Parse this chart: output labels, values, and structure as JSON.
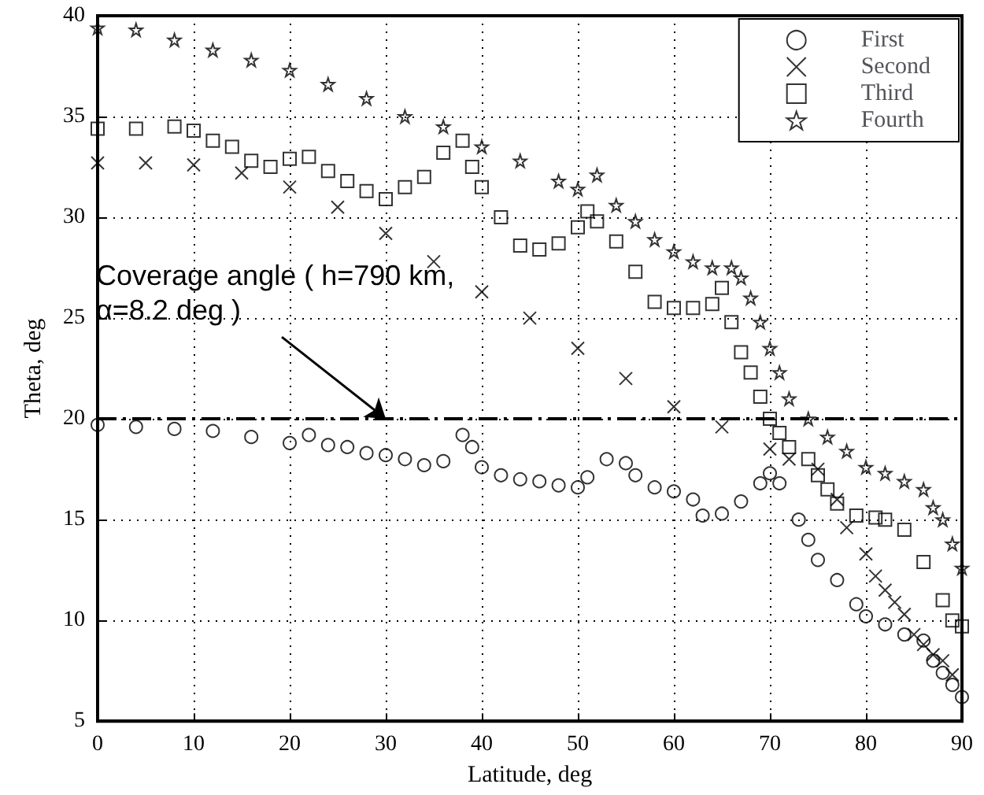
{
  "chart_data": {
    "type": "scatter",
    "xlabel": "Latitude, deg",
    "ylabel": "Theta, deg",
    "xlim": [
      0,
      90
    ],
    "xticks": [
      0,
      10,
      20,
      30,
      40,
      50,
      60,
      70,
      80,
      90
    ],
    "ylim": [
      5,
      40
    ],
    "yticks": [
      5,
      10,
      15,
      20,
      25,
      30,
      35,
      40
    ],
    "grid": true,
    "legend": "top right",
    "series": [
      {
        "name": "First",
        "color": "#000000",
        "marker": "circle",
        "x": [
          0,
          4,
          8,
          12,
          16,
          20,
          22,
          24,
          26,
          28,
          30,
          32,
          34,
          36,
          38,
          39,
          40,
          42,
          44,
          46,
          48,
          50,
          51,
          53,
          55,
          56,
          58,
          60,
          62,
          63,
          65,
          67,
          69,
          70,
          71,
          73,
          74,
          75,
          77,
          79,
          80,
          82,
          84,
          86,
          87,
          88,
          89,
          90
        ],
        "values": [
          19.7,
          19.6,
          19.5,
          19.4,
          19.1,
          18.8,
          19.2,
          18.7,
          18.6,
          18.3,
          18.2,
          18.0,
          17.7,
          17.9,
          19.2,
          18.6,
          17.6,
          17.2,
          17.0,
          16.9,
          16.7,
          16.6,
          17.1,
          18.0,
          17.8,
          17.2,
          16.6,
          16.4,
          16.0,
          15.2,
          15.3,
          15.9,
          16.8,
          17.3,
          16.8,
          15.0,
          14.0,
          13.0,
          12.0,
          10.8,
          10.2,
          9.8,
          9.3,
          9.0,
          8.0,
          7.4,
          6.8,
          6.2
        ]
      },
      {
        "name": "Second",
        "color": "#000000",
        "marker": "cross",
        "x": [
          0,
          5,
          10,
          15,
          20,
          25,
          30,
          35,
          40,
          45,
          50,
          55,
          60,
          65,
          70,
          72,
          75,
          77,
          78,
          80,
          81,
          82,
          83,
          84,
          85,
          86,
          87,
          88,
          89
        ],
        "values": [
          32.7,
          32.7,
          32.6,
          32.2,
          31.5,
          30.5,
          29.2,
          27.8,
          26.3,
          25.0,
          23.5,
          22.0,
          20.6,
          19.6,
          18.5,
          18.0,
          17.5,
          16.0,
          14.6,
          13.3,
          12.2,
          11.5,
          10.9,
          10.3,
          9.3,
          8.8,
          8.3,
          8.0,
          7.3
        ]
      },
      {
        "name": "Third",
        "color": "#000000",
        "marker": "square",
        "x": [
          0,
          4,
          8,
          10,
          12,
          14,
          16,
          18,
          20,
          22,
          24,
          26,
          28,
          30,
          32,
          34,
          36,
          38,
          39,
          40,
          42,
          44,
          46,
          48,
          50,
          51,
          52,
          54,
          56,
          58,
          60,
          62,
          64,
          65,
          66,
          67,
          68,
          69,
          70,
          71,
          72,
          74,
          75,
          76,
          77,
          79,
          81,
          82,
          84,
          86,
          88,
          89,
          90
        ],
        "values": [
          34.4,
          34.4,
          34.5,
          34.3,
          33.8,
          33.5,
          32.8,
          32.5,
          32.9,
          33.0,
          32.3,
          31.8,
          31.3,
          30.9,
          31.5,
          32.0,
          33.2,
          33.8,
          32.5,
          31.5,
          30.0,
          28.6,
          28.4,
          28.7,
          29.5,
          30.3,
          29.8,
          28.8,
          27.3,
          25.8,
          25.5,
          25.5,
          25.7,
          26.5,
          24.8,
          23.3,
          22.3,
          21.1,
          20.0,
          19.3,
          18.6,
          18.0,
          17.2,
          16.5,
          15.8,
          15.2,
          15.1,
          15.0,
          14.5,
          12.9,
          11.0,
          10.0,
          9.7
        ]
      },
      {
        "name": "Fourth",
        "color": "#000000",
        "marker": "star",
        "x": [
          0,
          4,
          8,
          12,
          16,
          20,
          24,
          28,
          32,
          36,
          40,
          44,
          48,
          50,
          52,
          54,
          56,
          58,
          60,
          62,
          64,
          66,
          67,
          68,
          69,
          70,
          71,
          72,
          74,
          76,
          78,
          80,
          82,
          84,
          86,
          87,
          88,
          89,
          90
        ],
        "values": [
          39.4,
          39.3,
          38.8,
          38.3,
          37.8,
          37.3,
          36.6,
          35.9,
          35.0,
          34.5,
          33.5,
          32.8,
          31.8,
          31.4,
          32.1,
          30.6,
          29.8,
          28.9,
          28.3,
          27.8,
          27.5,
          27.5,
          27.0,
          26.0,
          24.8,
          23.5,
          22.3,
          21.0,
          20.0,
          19.1,
          18.4,
          17.6,
          17.3,
          16.9,
          16.5,
          15.6,
          15.0,
          13.8,
          12.6
        ]
      }
    ],
    "ref_lines": [
      {
        "axis": "y",
        "value": 20,
        "color": "#000000",
        "line_style": "dashed"
      }
    ],
    "annotations": [
      {
        "text": "Coverage angle ( h=790 km,\nα=8.2 deg )",
        "x": 30,
        "y": 20
      }
    ]
  }
}
